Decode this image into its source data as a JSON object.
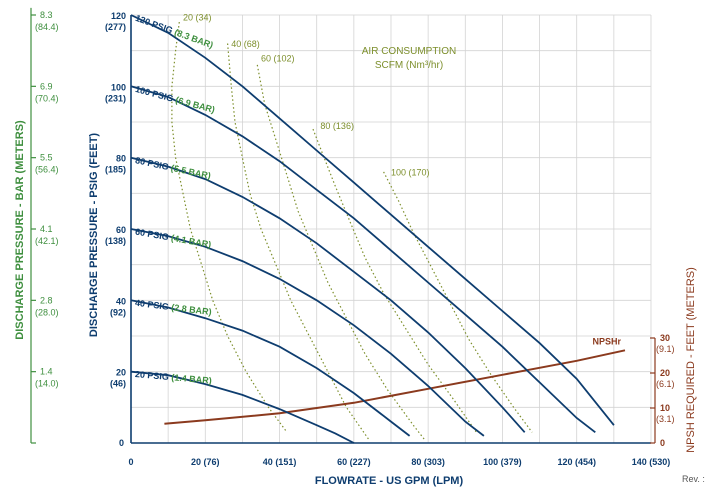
{
  "chart_data": {
    "type": "line",
    "xlabel": "FLOWRATE - US GPM (LPM)",
    "ylabel": "DISCHARGE PRESSURE - PSIG (FEET)",
    "ylabel_left": "DISCHARGE PRESSURE - BAR (METERS)",
    "ylabel_right": "NPSH REQUIRED - FEET (METERS)",
    "xlim": [
      0,
      140
    ],
    "ylim": [
      0,
      120
    ],
    "npsh_lim": [
      0,
      30
    ],
    "x_ticks": [
      {
        "value": 0,
        "main": "0",
        "sub": ""
      },
      {
        "value": 20,
        "main": "20",
        "sub": " (76)"
      },
      {
        "value": 40,
        "main": "40",
        "sub": " (151)"
      },
      {
        "value": 60,
        "main": "60",
        "sub": " (227)"
      },
      {
        "value": 80,
        "main": "80",
        "sub": " (303)"
      },
      {
        "value": 100,
        "main": "100",
        "sub": " (379)"
      },
      {
        "value": 120,
        "main": "120",
        "sub": " (454)"
      },
      {
        "value": 140,
        "main": "140",
        "sub": " (530)"
      }
    ],
    "y_ticks": [
      {
        "value": 0,
        "main": "0",
        "sub": ""
      },
      {
        "value": 20,
        "main": "20",
        "sub": "(46)"
      },
      {
        "value": 40,
        "main": "40",
        "sub": "(92)"
      },
      {
        "value": 60,
        "main": "60",
        "sub": "(138)"
      },
      {
        "value": 80,
        "main": "80",
        "sub": "(185)"
      },
      {
        "value": 100,
        "main": "100",
        "sub": "(231)"
      },
      {
        "value": 120,
        "main": "120",
        "sub": "(277)"
      }
    ],
    "bar_ticks": [
      {
        "value": 120,
        "main": "8.3",
        "sub": "(84.4)"
      },
      {
        "value": 100,
        "main": "6.9",
        "sub": "(70.4)"
      },
      {
        "value": 80,
        "main": "5.5",
        "sub": "(56.4)"
      },
      {
        "value": 60,
        "main": "4.1",
        "sub": "(42.1)"
      },
      {
        "value": 40,
        "main": "2.8",
        "sub": "(28.0)"
      },
      {
        "value": 20,
        "main": "1.4",
        "sub": "(14.0)"
      }
    ],
    "npsh_ticks": [
      {
        "value": 30,
        "main": "30",
        "sub": "(9.1)"
      },
      {
        "value": 20,
        "main": "20",
        "sub": "(6.1)"
      },
      {
        "value": 10,
        "main": "10",
        "sub": "(3.1)"
      },
      {
        "value": 0,
        "main": "0",
        "sub": ""
      }
    ],
    "air_title": [
      "AIR CONSUMPTION",
      "SCFM (Nm³/hr)"
    ],
    "series": [
      {
        "name": "20 PSIG (1.4 BAR)",
        "label_at": [
          1,
          18.5
        ],
        "label_angle": 5,
        "points": [
          [
            0,
            20
          ],
          [
            10,
            19
          ],
          [
            20,
            16.5
          ],
          [
            30,
            13.5
          ],
          [
            40,
            9.5
          ],
          [
            50,
            5
          ],
          [
            55,
            2.7
          ],
          [
            60,
            0
          ]
        ]
      },
      {
        "name": "40 PSIG (2.8 BAR)",
        "label_at": [
          1,
          38.5
        ],
        "label_angle": 7,
        "points": [
          [
            0,
            40
          ],
          [
            10,
            38
          ],
          [
            20,
            35
          ],
          [
            30,
            31.5
          ],
          [
            40,
            27
          ],
          [
            50,
            21
          ],
          [
            60,
            14
          ],
          [
            70,
            6
          ],
          [
            75,
            2
          ]
        ]
      },
      {
        "name": "60 PSIG (4.1 BAR)",
        "label_at": [
          1,
          58.5
        ],
        "label_angle": 10,
        "points": [
          [
            0,
            60
          ],
          [
            10,
            58
          ],
          [
            20,
            55
          ],
          [
            30,
            51
          ],
          [
            40,
            46
          ],
          [
            50,
            40
          ],
          [
            60,
            33
          ],
          [
            70,
            25
          ],
          [
            80,
            16
          ],
          [
            90,
            6
          ],
          [
            95,
            2
          ]
        ]
      },
      {
        "name": "80 PSIG (5.5 BAR)",
        "label_at": [
          1,
          78.5
        ],
        "label_angle": 12,
        "points": [
          [
            0,
            80
          ],
          [
            10,
            77.5
          ],
          [
            20,
            74
          ],
          [
            30,
            69
          ],
          [
            40,
            63
          ],
          [
            50,
            56
          ],
          [
            60,
            48
          ],
          [
            70,
            40
          ],
          [
            80,
            31
          ],
          [
            90,
            21
          ],
          [
            100,
            10
          ],
          [
            106,
            3
          ]
        ]
      },
      {
        "name": "100 PSIG (6.9 BAR)",
        "label_at": [
          1,
          98.5
        ],
        "label_angle": 15,
        "points": [
          [
            0,
            100
          ],
          [
            10,
            97
          ],
          [
            20,
            92
          ],
          [
            30,
            86
          ],
          [
            40,
            79
          ],
          [
            50,
            71
          ],
          [
            60,
            63
          ],
          [
            70,
            54
          ],
          [
            80,
            45
          ],
          [
            90,
            36
          ],
          [
            100,
            27
          ],
          [
            110,
            17
          ],
          [
            120,
            7
          ],
          [
            125,
            3
          ]
        ]
      },
      {
        "name": "120 PSIG (8.3 BAR)",
        "label_at": [
          1,
          118.5
        ],
        "label_angle": 20,
        "points": [
          [
            0,
            120
          ],
          [
            10,
            115
          ],
          [
            20,
            108
          ],
          [
            30,
            100
          ],
          [
            40,
            91
          ],
          [
            50,
            82
          ],
          [
            60,
            73
          ],
          [
            70,
            64
          ],
          [
            80,
            55
          ],
          [
            90,
            46
          ],
          [
            100,
            37
          ],
          [
            110,
            28
          ],
          [
            120,
            18
          ],
          [
            130,
            5
          ]
        ]
      }
    ],
    "air_consumption": [
      {
        "label": "20 (34)",
        "label_at": [
          14,
          118.5
        ],
        "points": [
          [
            13,
            118
          ],
          [
            12,
            110
          ],
          [
            11,
            100
          ],
          [
            11,
            90
          ],
          [
            12,
            80
          ],
          [
            14,
            70
          ],
          [
            16,
            60
          ],
          [
            19,
            50
          ],
          [
            22,
            40
          ],
          [
            26,
            30
          ],
          [
            31,
            20
          ],
          [
            37,
            10
          ],
          [
            42,
            3
          ]
        ]
      },
      {
        "label": "40 (68)",
        "label_at": [
          27,
          111
        ],
        "points": [
          [
            26,
            112
          ],
          [
            27,
            100
          ],
          [
            28,
            90
          ],
          [
            30,
            80
          ],
          [
            32,
            70
          ],
          [
            35,
            60
          ],
          [
            39,
            50
          ],
          [
            43,
            40
          ],
          [
            48,
            30
          ],
          [
            53,
            20
          ],
          [
            58,
            10
          ],
          [
            64,
            1
          ]
        ]
      },
      {
        "label": "60 (102)",
        "label_at": [
          35,
          107
        ],
        "points": [
          [
            34,
            106
          ],
          [
            36,
            95
          ],
          [
            39,
            85
          ],
          [
            42,
            75
          ],
          [
            45,
            65
          ],
          [
            49,
            55
          ],
          [
            53,
            45
          ],
          [
            58,
            35
          ],
          [
            63,
            25
          ],
          [
            69,
            15
          ],
          [
            76,
            5
          ],
          [
            79,
            1
          ]
        ]
      },
      {
        "label": "80 (136)",
        "label_at": [
          51,
          88
        ],
        "points": [
          [
            49,
            88
          ],
          [
            52,
            80
          ],
          [
            55,
            72
          ],
          [
            59,
            62
          ],
          [
            63,
            52
          ],
          [
            68,
            42
          ],
          [
            74,
            32
          ],
          [
            80,
            22
          ],
          [
            87,
            12
          ],
          [
            93,
            3
          ]
        ]
      },
      {
        "label": "100 (170)",
        "label_at": [
          70,
          75
        ],
        "points": [
          [
            68,
            76
          ],
          [
            72,
            68
          ],
          [
            76,
            59
          ],
          [
            81,
            49
          ],
          [
            86,
            39
          ],
          [
            91,
            29
          ],
          [
            97,
            19
          ],
          [
            103,
            10
          ],
          [
            108,
            3
          ]
        ]
      }
    ],
    "npsh": {
      "name": "NPSHr",
      "points": [
        [
          9,
          5.5
        ],
        [
          20,
          6.5
        ],
        [
          40,
          8.5
        ],
        [
          60,
          11.5
        ],
        [
          80,
          15.5
        ],
        [
          100,
          19.5
        ],
        [
          120,
          23.5
        ],
        [
          133,
          26.5
        ]
      ]
    },
    "footer": "Rev. :",
    "colors": {
      "pump_curve": "#0e3d6f",
      "air_curve": "#7d8f2c",
      "npsh_curve": "#8b3a1e",
      "bar_axis": "#3f8f3f",
      "grid": "#d3d3d3"
    }
  }
}
